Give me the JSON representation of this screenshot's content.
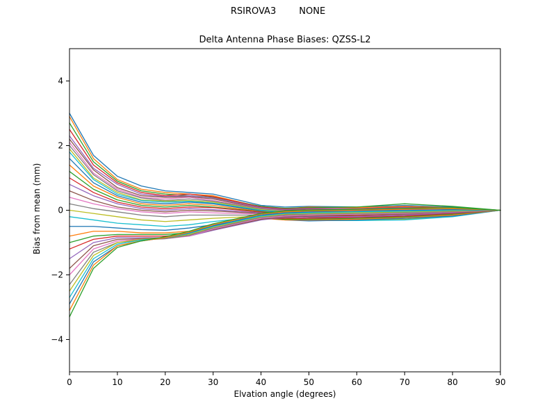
{
  "figure": {
    "suptitle": "RSIROVA3        NONE",
    "title": "Delta Antenna Phase Biases: QZSS-L2",
    "xlabel": "Elvation angle (degrees)",
    "ylabel": "Bias from mean (mm)"
  },
  "chart_data": {
    "type": "line",
    "suptitle": "RSIROVA3        NONE",
    "title": "Delta Antenna Phase Biases: QZSS-L2",
    "xlabel": "Elvation angle (degrees)",
    "ylabel": "Bias from mean (mm)",
    "xlim": [
      0,
      90
    ],
    "ylim": [
      -5,
      5
    ],
    "x_ticks": [
      0,
      10,
      20,
      30,
      40,
      50,
      60,
      70,
      80,
      90
    ],
    "y_ticks": [
      -4,
      -2,
      0,
      2,
      4
    ],
    "grid": false,
    "legend": "none",
    "x": [
      0,
      5,
      10,
      15,
      20,
      25,
      30,
      40,
      45,
      50,
      60,
      70,
      80,
      90
    ],
    "series": [
      {
        "color": "#1f77b4",
        "values": [
          3,
          1.7,
          1.05,
          0.75,
          0.6,
          0.55,
          0.5,
          0.15,
          0.1,
          0.12,
          0.1,
          0.15,
          0.1,
          0
        ]
      },
      {
        "color": "#ff7f0e",
        "values": [
          2.9,
          1.6,
          0.95,
          0.65,
          0.55,
          0.5,
          0.45,
          0.1,
          0.05,
          0.1,
          0.08,
          0.12,
          0.08,
          0
        ]
      },
      {
        "color": "#2ca02c",
        "values": [
          2.7,
          1.5,
          0.9,
          0.6,
          0.5,
          0.45,
          0.4,
          0.12,
          0.06,
          0.08,
          0.1,
          0.2,
          0.12,
          0
        ]
      },
      {
        "color": "#d62728",
        "values": [
          2.5,
          1.4,
          0.85,
          0.55,
          0.45,
          0.5,
          0.42,
          0.1,
          0.04,
          0.06,
          0.05,
          0.1,
          0.06,
          0
        ]
      },
      {
        "color": "#9467bd",
        "values": [
          2.3,
          1.3,
          0.8,
          0.5,
          0.42,
          0.45,
          0.38,
          0.08,
          0.02,
          0.05,
          0.04,
          0.08,
          0.05,
          0
        ]
      },
      {
        "color": "#8c564b",
        "values": [
          2.2,
          1.25,
          0.7,
          0.45,
          0.4,
          0.42,
          0.35,
          0.06,
          0,
          0.03,
          0.02,
          0.05,
          0.03,
          0
        ]
      },
      {
        "color": "#e377c2",
        "values": [
          2.1,
          1.15,
          0.65,
          0.4,
          0.35,
          0.4,
          0.3,
          0.05,
          -0.02,
          0,
          0,
          0.03,
          0.02,
          0
        ]
      },
      {
        "color": "#7f7f7f",
        "values": [
          2,
          1.1,
          0.6,
          0.38,
          0.3,
          0.35,
          0.28,
          0.04,
          -0.03,
          -0.02,
          -0.02,
          0,
          0,
          0
        ]
      },
      {
        "color": "#bcbd22",
        "values": [
          1.9,
          1,
          0.55,
          0.32,
          0.28,
          0.3,
          0.25,
          0.02,
          -0.05,
          -0.05,
          -0.05,
          -0.03,
          -0.02,
          0
        ]
      },
      {
        "color": "#17becf",
        "values": [
          1.8,
          0.95,
          0.5,
          0.3,
          0.25,
          0.28,
          0.22,
          0,
          -0.06,
          -0.08,
          -0.08,
          -0.05,
          -0.04,
          0
        ]
      },
      {
        "color": "#1f77b4",
        "values": [
          1.6,
          0.85,
          0.45,
          0.25,
          0.2,
          0.25,
          0.2,
          -0.02,
          -0.08,
          -0.1,
          -0.1,
          -0.08,
          -0.05,
          0
        ]
      },
      {
        "color": "#ff7f0e",
        "values": [
          1.4,
          0.75,
          0.4,
          0.2,
          0.15,
          0.2,
          0.15,
          -0.04,
          -0.1,
          -0.12,
          -0.12,
          -0.1,
          -0.06,
          0
        ]
      },
      {
        "color": "#2ca02c",
        "values": [
          1.2,
          0.65,
          0.32,
          0.15,
          0.1,
          0.15,
          0.1,
          -0.05,
          -0.12,
          -0.15,
          -0.15,
          -0.12,
          -0.08,
          0
        ]
      },
      {
        "color": "#d62728",
        "values": [
          1,
          0.55,
          0.25,
          0.1,
          0.05,
          0.1,
          0.08,
          -0.06,
          -0.14,
          -0.18,
          -0.18,
          -0.15,
          -0.1,
          0
        ]
      },
      {
        "color": "#9467bd",
        "values": [
          0.8,
          0.45,
          0.2,
          0.05,
          0,
          0.05,
          0.02,
          -0.08,
          -0.16,
          -0.2,
          -0.2,
          -0.18,
          -0.12,
          0
        ]
      },
      {
        "color": "#8c564b",
        "values": [
          0.6,
          0.3,
          0.1,
          0,
          -0.05,
          0,
          -0.02,
          -0.1,
          -0.18,
          -0.22,
          -0.22,
          -0.2,
          -0.14,
          0
        ]
      },
      {
        "color": "#e377c2",
        "values": [
          0.4,
          0.2,
          0.05,
          -0.05,
          -0.1,
          -0.05,
          -0.08,
          -0.12,
          -0.2,
          -0.25,
          -0.25,
          -0.22,
          -0.15,
          0
        ]
      },
      {
        "color": "#7f7f7f",
        "values": [
          0.2,
          0.05,
          -0.05,
          -0.15,
          -0.2,
          -0.15,
          -0.15,
          -0.15,
          -0.22,
          -0.28,
          -0.28,
          -0.25,
          -0.16,
          0
        ]
      },
      {
        "color": "#bcbd22",
        "values": [
          0,
          -0.1,
          -0.2,
          -0.3,
          -0.35,
          -0.3,
          -0.25,
          -0.18,
          -0.25,
          -0.3,
          -0.3,
          -0.28,
          -0.18,
          0
        ]
      },
      {
        "color": "#17becf",
        "values": [
          -0.2,
          -0.3,
          -0.4,
          -0.45,
          -0.5,
          -0.45,
          -0.35,
          -0.2,
          -0.28,
          -0.32,
          -0.32,
          -0.3,
          -0.2,
          0
        ]
      },
      {
        "color": "#1f77b4",
        "values": [
          -0.5,
          -0.5,
          -0.55,
          -0.6,
          -0.62,
          -0.55,
          -0.45,
          -0.22,
          -0.3,
          -0.33,
          -0.3,
          -0.25,
          -0.18,
          0
        ]
      },
      {
        "color": "#ff7f0e",
        "values": [
          -0.8,
          -0.65,
          -0.65,
          -0.7,
          -0.7,
          -0.65,
          -0.5,
          -0.25,
          -0.3,
          -0.3,
          -0.28,
          -0.22,
          -0.15,
          0
        ]
      },
      {
        "color": "#2ca02c",
        "values": [
          -1,
          -0.8,
          -0.75,
          -0.75,
          -0.75,
          -0.7,
          -0.55,
          -0.25,
          -0.28,
          -0.28,
          -0.25,
          -0.2,
          -0.12,
          0
        ]
      },
      {
        "color": "#d62728",
        "values": [
          -1.2,
          -0.9,
          -0.8,
          -0.8,
          -0.8,
          -0.75,
          -0.6,
          -0.28,
          -0.25,
          -0.25,
          -0.22,
          -0.18,
          -0.1,
          0
        ]
      },
      {
        "color": "#9467bd",
        "values": [
          -1.5,
          -1,
          -0.85,
          -0.85,
          -0.85,
          -0.8,
          -0.62,
          -0.3,
          -0.22,
          -0.2,
          -0.2,
          -0.15,
          -0.08,
          0
        ]
      },
      {
        "color": "#8c564b",
        "values": [
          -1.8,
          -1.1,
          -0.9,
          -0.88,
          -0.85,
          -0.78,
          -0.6,
          -0.28,
          -0.2,
          -0.18,
          -0.15,
          -0.12,
          -0.06,
          0
        ]
      },
      {
        "color": "#e377c2",
        "values": [
          -2,
          -1.2,
          -0.95,
          -0.9,
          -0.88,
          -0.8,
          -0.58,
          -0.25,
          -0.18,
          -0.15,
          -0.12,
          -0.1,
          -0.05,
          0
        ]
      },
      {
        "color": "#7f7f7f",
        "values": [
          -2.3,
          -1.3,
          -1,
          -0.92,
          -0.88,
          -0.78,
          -0.55,
          -0.22,
          -0.15,
          -0.12,
          -0.1,
          -0.08,
          -0.04,
          0
        ]
      },
      {
        "color": "#bcbd22",
        "values": [
          -2.5,
          -1.4,
          -1,
          -0.9,
          -0.85,
          -0.75,
          -0.52,
          -0.2,
          -0.12,
          -0.1,
          -0.08,
          -0.05,
          -0.02,
          0
        ]
      },
      {
        "color": "#17becf",
        "values": [
          -2.7,
          -1.5,
          -1.05,
          -0.92,
          -0.85,
          -0.72,
          -0.5,
          -0.18,
          -0.1,
          -0.08,
          -0.05,
          -0.03,
          0,
          0
        ]
      },
      {
        "color": "#1f77b4",
        "values": [
          -2.9,
          -1.6,
          -1.1,
          -0.95,
          -0.85,
          -0.7,
          -0.48,
          -0.15,
          -0.08,
          -0.05,
          -0.02,
          0,
          0.02,
          0
        ]
      },
      {
        "color": "#ff7f0e",
        "values": [
          -3.1,
          -1.7,
          -1.1,
          -0.95,
          -0.85,
          -0.68,
          -0.45,
          -0.12,
          -0.05,
          -0.02,
          0,
          0.03,
          0.05,
          0
        ]
      },
      {
        "color": "#2ca02c",
        "values": [
          -3.3,
          -1.8,
          -1.15,
          -0.95,
          -0.82,
          -0.65,
          -0.42,
          -0.1,
          -0.02,
          0,
          0.03,
          0.06,
          0.08,
          0
        ]
      }
    ],
    "axis_color": "#000000",
    "background_color": "#ffffff"
  }
}
